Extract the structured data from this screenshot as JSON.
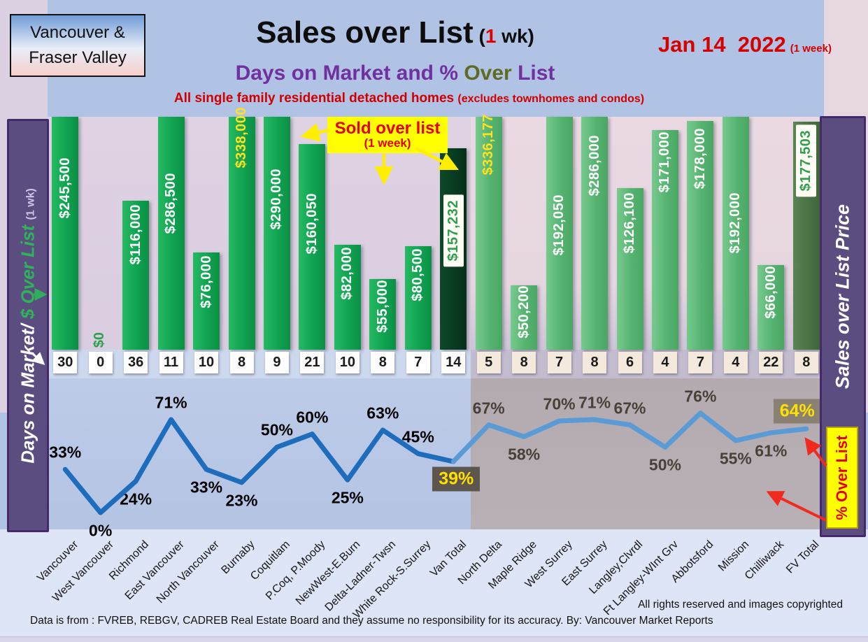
{
  "header": {
    "region_box": [
      "Vancouver &",
      "Fraser Valley"
    ],
    "title": {
      "main": "Sales over List",
      "suffix_open": " (",
      "suffix_num": "1",
      "suffix_rest": " wk)"
    },
    "date": {
      "main": "Jan 14  2022",
      "note": "(1 week)"
    },
    "subtitle": {
      "part1": "Days on Market and % ",
      "part2": "Over",
      "part3": " List"
    },
    "tagline": {
      "main": "All single family residential detached homes ",
      "note": "(excludes townhomes and condos)"
    }
  },
  "sidebars": {
    "left": {
      "white": "Days on Market/ ",
      "green": "$ Over List ",
      "small": "(1 wk)"
    },
    "right": {
      "label": "Sales over List Price",
      "badge": "% Over List"
    }
  },
  "callout": {
    "title": "Sold over list",
    "subtitle": "(1 week)"
  },
  "footer": {
    "rights": "All rights reserved and  images copyrighted",
    "source": "Data is from : FVREB, REBGV, CADREB Real Estate Board and they assume no responsibility for its accuracy. By: Vancouver Market Reports"
  },
  "chart_data": {
    "type": "bar+line",
    "title": "Sales over List (1 wk) - Days on Market and % Over List",
    "categories": [
      "Vancouver",
      "West Vancouver",
      "Richmond",
      "East Vancouver",
      "North Vancouver",
      "Burnaby",
      "Coquitlam",
      "P.Coq, P.Moody",
      "NewWest-E.Burn",
      "Delta-Ladner-Twsn",
      "White Rock-S.Surrey",
      "Van Total",
      "North Delta",
      "Maple Ridge",
      "West Surrey",
      "East Surrey",
      "Langley,Clvrdl",
      "Ft Langley-WInt Grv",
      "Abbotsford",
      "Mission",
      "Chilliwack",
      "FV Total"
    ],
    "series": [
      {
        "name": "$ Over List (1 wk)",
        "type": "bar",
        "values": [
          245500,
          0,
          116000,
          286500,
          76000,
          338000,
          290000,
          160050,
          82000,
          55000,
          80500,
          157232,
          336177,
          50200,
          192050,
          286000,
          126100,
          171000,
          178000,
          192000,
          66000,
          177503
        ],
        "labels": [
          "$245,500",
          "$0",
          "$116,000",
          "$286,500",
          "$76,000",
          "$338,000",
          "$290,000",
          "$160,050",
          "$82,000",
          "$55,000",
          "$80,500",
          "$157,232",
          "$336,177",
          "$50,200",
          "$192,050",
          "$286,000",
          "$126,100",
          "$171,000",
          "$178,000",
          "$192,000",
          "$66,000",
          "$177,503"
        ]
      },
      {
        "name": "Days on Market",
        "type": "table",
        "values": [
          30,
          0,
          36,
          11,
          10,
          8,
          9,
          21,
          10,
          8,
          7,
          14,
          5,
          8,
          7,
          8,
          6,
          4,
          7,
          4,
          22,
          8
        ]
      },
      {
        "name": "% Over List",
        "type": "line",
        "values": [
          33,
          0,
          24,
          71,
          33,
          23,
          50,
          60,
          25,
          63,
          45,
          39,
          67,
          58,
          70,
          71,
          67,
          50,
          76,
          55,
          61,
          64
        ],
        "labels": [
          "33%",
          "0%",
          "24%",
          "71%",
          "33%",
          "23%",
          "50%",
          "60%",
          "25%",
          "63%",
          "45%",
          "39%",
          "67%",
          "58%",
          "70%",
          "71%",
          "67%",
          "50%",
          "76%",
          "55%",
          "61%",
          "64%"
        ]
      }
    ],
    "bar_axis_max": 181500,
    "groups": [
      "van",
      "van",
      "van",
      "van",
      "van",
      "van",
      "van",
      "van",
      "van",
      "van",
      "van",
      "van-total",
      "fv",
      "fv",
      "fv",
      "fv",
      "fv",
      "fv",
      "fv",
      "fv",
      "fv",
      "fv-total"
    ],
    "bar_label_emphasis": [
      "plain",
      "zero",
      "plain",
      "plain",
      "plain",
      "yellow",
      "plain",
      "plain",
      "plain",
      "plain",
      "plain",
      "boxed",
      "yellow",
      "plain",
      "plain",
      "plain",
      "plain",
      "plain",
      "plain",
      "plain",
      "plain",
      "boxed"
    ],
    "regions": {
      "vancouver_last_index": 11,
      "fraser_valley_last_index": 21
    },
    "legend_position": "none",
    "grid": true
  },
  "layout_hints": {
    "bar_label_offsets": [
      58,
      0,
      5,
      80,
      4,
      -14,
      74,
      70,
      3,
      1,
      3,
      66,
      -4,
      0,
      111,
      26,
      6,
      2,
      10,
      108,
      1,
      4
    ],
    "pct_label_pos": [
      "above",
      "below",
      "below",
      "above",
      "below",
      "below",
      "above",
      "above",
      "below",
      "above",
      "above",
      "box",
      "above",
      "below",
      "above",
      "above",
      "above",
      "below",
      "above",
      "below",
      "below",
      "box"
    ],
    "pct_box_offsets": {
      "11": [
        4,
        25
      ],
      "21": [
        -13,
        -25
      ]
    }
  },
  "colors": {
    "van_bar": "#10b355",
    "van_total_bar": "#083a1e",
    "fv_bar": "#5abc76",
    "fv_total_bar": "#4a7547",
    "line_van": "#1e6dbd",
    "line_fv": "#5b9bd5",
    "accent_red": "#e10000",
    "accent_purple": "#7030a0",
    "accent_olive": "#5f6b22",
    "bar_label_yellow": "#ffe11e",
    "pct_box_dark": "#5d564e",
    "pct_box_tan": "#8b8173",
    "pct_label_fv": "#4a4039",
    "day_box_van": "#ffffff",
    "day_box_fv": "#f3e9dc",
    "callout_bg": "#ffff00"
  }
}
